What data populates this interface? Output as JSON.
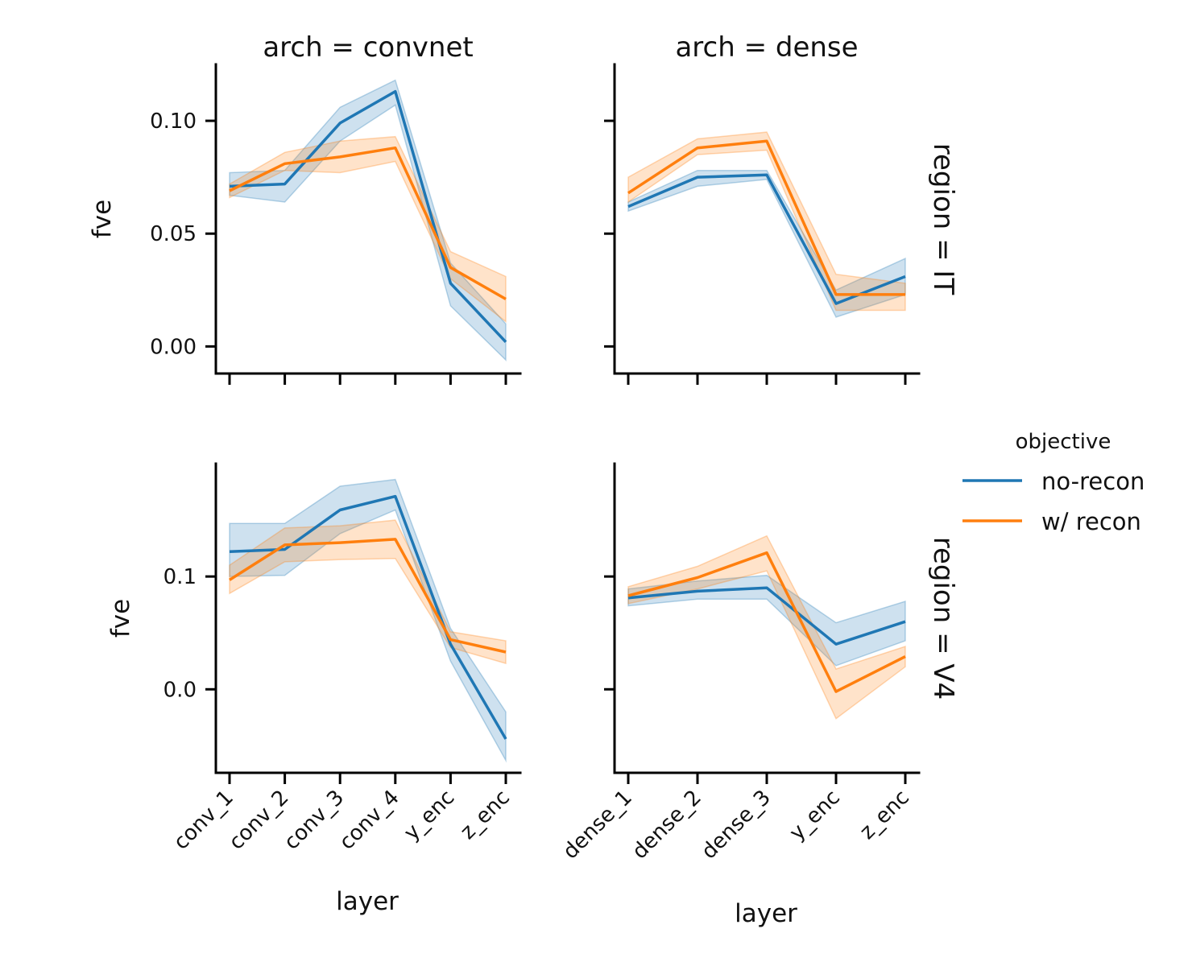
{
  "legend": {
    "title": "objective",
    "entries": [
      {
        "label": "no-recon",
        "color": "#1f77b4"
      },
      {
        "label": "w/ recon",
        "color": "#ff7f0e"
      }
    ]
  },
  "chart_data": [
    {
      "type": "line",
      "title": "arch = convnet",
      "row_label": "",
      "xlabel": "",
      "ylabel": "fve",
      "categories": [
        "conv_1",
        "conv_2",
        "conv_3",
        "conv_4",
        "y_enc",
        "z_enc"
      ],
      "yticks": [
        "0.00",
        "0.05",
        "0.10"
      ],
      "ytick_values": [
        0.0,
        0.05,
        0.1
      ],
      "ylim": [
        -0.012,
        0.125
      ],
      "series": [
        {
          "name": "no-recon",
          "color": "#1f77b4",
          "values": [
            0.071,
            0.072,
            0.099,
            0.113,
            0.028,
            0.002
          ],
          "lower": [
            0.067,
            0.064,
            0.091,
            0.107,
            0.018,
            -0.006
          ],
          "upper": [
            0.077,
            0.078,
            0.106,
            0.118,
            0.037,
            0.01
          ]
        },
        {
          "name": "w/ recon",
          "color": "#ff7f0e",
          "values": [
            0.069,
            0.081,
            0.084,
            0.088,
            0.035,
            0.021
          ],
          "lower": [
            0.066,
            0.078,
            0.077,
            0.082,
            0.03,
            0.011
          ],
          "upper": [
            0.072,
            0.086,
            0.091,
            0.093,
            0.042,
            0.031
          ]
        }
      ]
    },
    {
      "type": "line",
      "title": "arch = dense",
      "row_label": "region = IT",
      "xlabel": "",
      "ylabel": "",
      "categories": [
        "dense_1",
        "dense_2",
        "dense_3",
        "y_enc",
        "z_enc"
      ],
      "yticks": [],
      "ytick_values": [
        0.0,
        0.05,
        0.1
      ],
      "ylim": [
        -0.012,
        0.125
      ],
      "series": [
        {
          "name": "no-recon",
          "color": "#1f77b4",
          "values": [
            0.062,
            0.075,
            0.076,
            0.019,
            0.031
          ],
          "lower": [
            0.06,
            0.071,
            0.074,
            0.013,
            0.023
          ],
          "upper": [
            0.064,
            0.078,
            0.078,
            0.025,
            0.039
          ]
        },
        {
          "name": "w/ recon",
          "color": "#ff7f0e",
          "values": [
            0.068,
            0.088,
            0.091,
            0.023,
            0.023
          ],
          "lower": [
            0.064,
            0.085,
            0.087,
            0.016,
            0.016
          ],
          "upper": [
            0.075,
            0.092,
            0.095,
            0.032,
            0.028
          ]
        }
      ]
    },
    {
      "type": "line",
      "title": "",
      "row_label": "",
      "xlabel": "layer",
      "ylabel": "fve",
      "categories": [
        "conv_1",
        "conv_2",
        "conv_3",
        "conv_4",
        "y_enc",
        "z_enc"
      ],
      "yticks": [
        "0.0",
        "0.1"
      ],
      "ytick_values": [
        0.0,
        0.1
      ],
      "ylim": [
        -0.074,
        0.2
      ],
      "series": [
        {
          "name": "no-recon",
          "color": "#1f77b4",
          "values": [
            0.122,
            0.124,
            0.159,
            0.171,
            0.04,
            -0.044
          ],
          "lower": [
            0.1,
            0.101,
            0.138,
            0.159,
            0.025,
            -0.063
          ],
          "upper": [
            0.147,
            0.147,
            0.18,
            0.186,
            0.054,
            -0.02
          ]
        },
        {
          "name": "w/ recon",
          "color": "#ff7f0e",
          "values": [
            0.097,
            0.128,
            0.13,
            0.133,
            0.044,
            0.033
          ],
          "lower": [
            0.085,
            0.113,
            0.115,
            0.116,
            0.037,
            0.023
          ],
          "upper": [
            0.11,
            0.143,
            0.145,
            0.15,
            0.051,
            0.043
          ]
        }
      ]
    },
    {
      "type": "line",
      "title": "",
      "row_label": "region = V4",
      "xlabel": "layer",
      "ylabel": "",
      "categories": [
        "dense_1",
        "dense_2",
        "dense_3",
        "y_enc",
        "z_enc"
      ],
      "yticks": [],
      "ytick_values": [
        0.0,
        0.1
      ],
      "ylim": [
        -0.074,
        0.2
      ],
      "series": [
        {
          "name": "no-recon",
          "color": "#1f77b4",
          "values": [
            0.081,
            0.087,
            0.09,
            0.04,
            0.06
          ],
          "lower": [
            0.074,
            0.08,
            0.08,
            0.021,
            0.043
          ],
          "upper": [
            0.089,
            0.096,
            0.101,
            0.059,
            0.078
          ]
        },
        {
          "name": "w/ recon",
          "color": "#ff7f0e",
          "values": [
            0.083,
            0.099,
            0.121,
            -0.002,
            0.029
          ],
          "lower": [
            0.076,
            0.089,
            0.105,
            -0.026,
            0.02
          ],
          "upper": [
            0.091,
            0.109,
            0.136,
            0.018,
            0.038
          ]
        }
      ]
    }
  ]
}
